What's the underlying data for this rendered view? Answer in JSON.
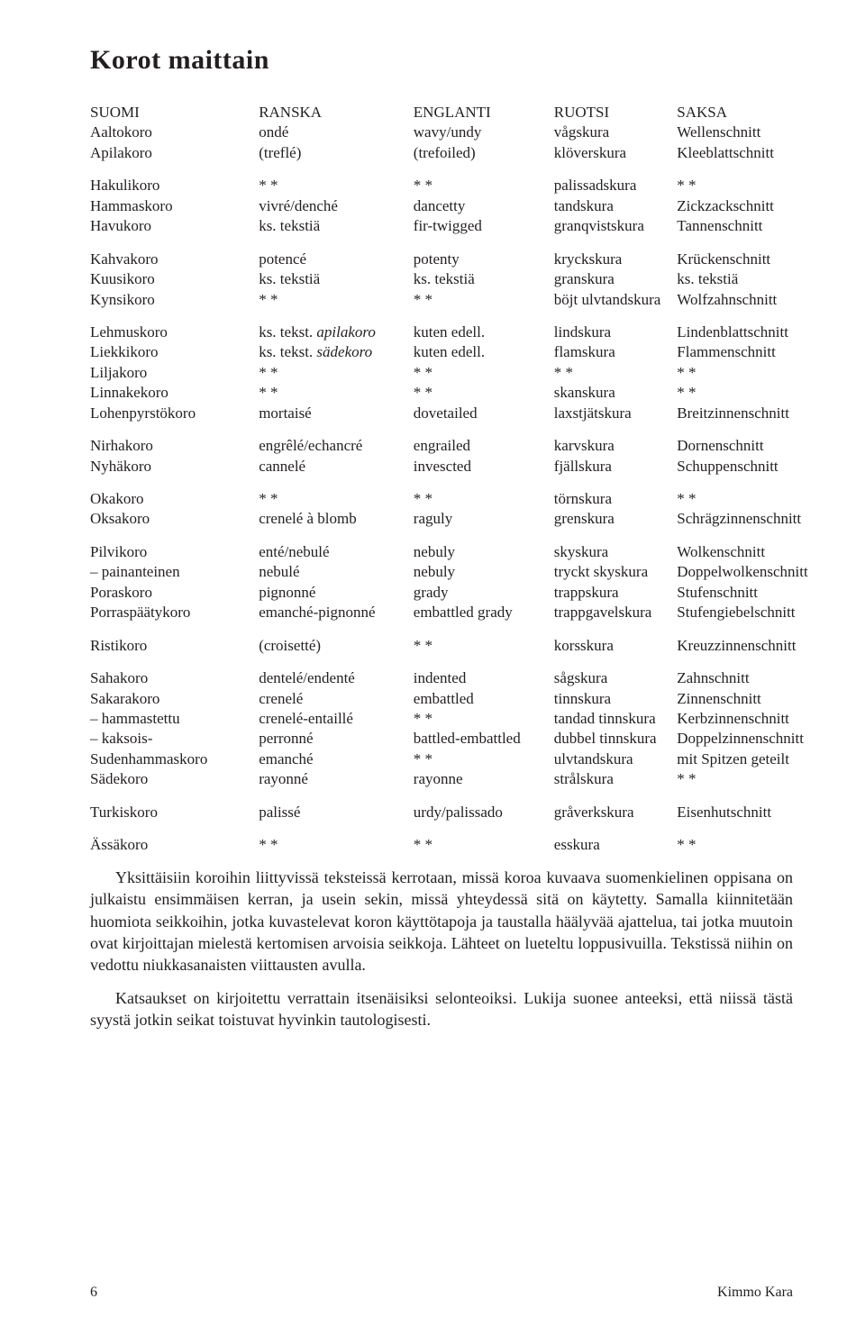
{
  "title": "Korot maittain",
  "headers": [
    "SUOMI",
    "RANSKA",
    "ENGLANTI",
    "RUOTSI",
    "SAKSA"
  ],
  "groups": [
    [
      [
        "Aaltokoro",
        "ondé",
        "wavy/undy",
        "vågskura",
        "Wellenschnitt"
      ],
      [
        "Apilakoro",
        "(treflé)",
        "(trefoiled)",
        "klöverskura",
        "Kleeblattschnitt"
      ]
    ],
    [
      [
        "Hakulikoro",
        "* *",
        "* *",
        "palissadskura",
        "* *"
      ],
      [
        "Hammaskoro",
        "vivré/denché",
        "dancetty",
        "tandskura",
        "Zickzackschnitt"
      ],
      [
        "Havukoro",
        "ks. tekstiä",
        "fir-twigged",
        "granqvistskura",
        "Tannenschnitt"
      ]
    ],
    [
      [
        "Kahvakoro",
        "potencé",
        "potenty",
        "kryckskura",
        "Krückenschnitt"
      ],
      [
        "Kuusikoro",
        "ks. tekstiä",
        "ks. tekstiä",
        "granskura",
        "ks. tekstiä"
      ],
      [
        "Kynsikoro",
        "* *",
        "* *",
        "böjt ulvtandskura",
        "Wolfzahnschnitt"
      ]
    ],
    [
      [
        "Lehmuskoro",
        "ks. tekst. <i>apilakoro</i>",
        "kuten edell.",
        "lindskura",
        "Lindenblattschnitt"
      ],
      [
        "Liekkikoro",
        "ks. tekst. <i>sädekoro</i>",
        "kuten edell.",
        "flamskura",
        "Flammenschnitt"
      ],
      [
        "Liljakoro",
        "* *",
        "* *",
        "* *",
        "* *"
      ],
      [
        "Linnakekoro",
        "* *",
        "* *",
        "skanskura",
        "* *"
      ],
      [
        "Lohenpyrstökoro",
        "mortaisé",
        "dovetailed",
        "laxstjätskura",
        "Breitzinnenschnitt"
      ]
    ],
    [
      [
        "Nirhakoro",
        "engrêlé/echancré",
        "engrailed",
        "karvskura",
        "Dornenschnitt"
      ],
      [
        "Nyhäkoro",
        "cannelé",
        "invescted",
        "fjällskura",
        "Schuppenschnitt"
      ]
    ],
    [
      [
        "Okakoro",
        "* *",
        "* *",
        "törnskura",
        "* *"
      ],
      [
        "Oksakoro",
        "crenelé à blomb",
        "raguly",
        "grenskura",
        "Schrägzinnenschnitt"
      ]
    ],
    [
      [
        "Pilvikoro",
        "enté/nebulé",
        "nebuly",
        "skyskura",
        "Wolkenschnitt"
      ],
      [
        "– painanteinen",
        "nebulé",
        "nebuly",
        "tryckt skyskura",
        "Doppelwolkenschnitt"
      ],
      [
        "Poraskoro",
        "pignonné",
        "grady",
        "trappskura",
        "Stufenschnitt"
      ],
      [
        "Porraspäätykoro",
        "emanché-pignonné",
        "embattled grady",
        "trappgavelskura",
        "Stufengiebelschnitt"
      ]
    ],
    [
      [
        "Ristikoro",
        "(croisetté)",
        "* *",
        "korsskura",
        "Kreuzzinnenschnitt"
      ]
    ],
    [
      [
        "Sahakoro",
        "dentelé/endenté",
        "indented",
        "sågskura",
        "Zahnschnitt"
      ],
      [
        "Sakarakoro",
        "crenelé",
        "embattled",
        "tinnskura",
        "Zinnenschnitt"
      ],
      [
        "– hammastettu",
        "crenelé-entaillé",
        "* *",
        "tandad tinnskura",
        "Kerbzinnenschnitt"
      ],
      [
        "– kaksois-",
        "perronné",
        "battled-embattled",
        "dubbel tinnskura",
        "Doppelzinnenschnitt"
      ],
      [
        "Sudenhammaskoro",
        "emanché",
        "* *",
        "ulvtandskura",
        "mit Spitzen geteilt"
      ],
      [
        "Sädekoro",
        "rayonné",
        "rayonne",
        "strålskura",
        "* *"
      ]
    ],
    [
      [
        "Turkiskoro",
        "palissé",
        "urdy/palissado",
        "gråverkskura",
        "Eisenhutschnitt"
      ]
    ],
    [
      [
        "Ässäkoro",
        "* *",
        "* *",
        "esskura",
        "* *"
      ]
    ]
  ],
  "paragraphs": [
    "Yksittäisiin koroihin liittyvissä teksteissä kerrotaan, missä koroa kuvaava suomenkielinen oppisana on julkaistu ensimmäisen kerran, ja usein sekin, missä yhteydessä sitä on käytetty. Samalla kiinnitetään huomiota seikkoihin, jotka kuvastelevat koron käyttötapoja ja taustalla häälyvää ajattelua, tai jotka muutoin ovat kirjoittajan mielestä kertomisen arvoisia seikkoja. Lähteet on lueteltu loppusivuilla. Tekstissä niihin on vedottu niukkasanaisten viittausten avulla.",
    "Katsaukset on kirjoitettu verrattain itsenäisiksi selonteoiksi. Lukija suonee anteeksi, että niissä tästä syystä jotkin seikat toistuvat hyvinkin tautologisesti."
  ],
  "footer": {
    "page": "6",
    "author": "Kimmo Kara"
  }
}
